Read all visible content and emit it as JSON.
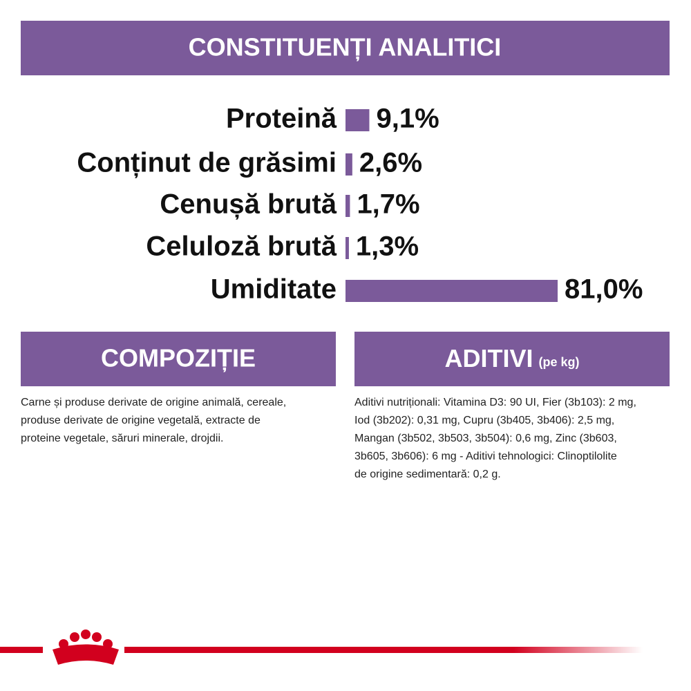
{
  "header": {
    "title": "CONSTITUENȚI ANALITICI"
  },
  "chart_data": {
    "type": "bar",
    "orientation": "horizontal",
    "color": "#7b5a9a",
    "categories": [
      "Proteină",
      "Conținut de grăsimi",
      "Cenușă brută",
      "Celuloză brută",
      "Umiditate"
    ],
    "values": [
      9.1,
      2.6,
      1.7,
      1.3,
      81.0
    ],
    "value_labels": [
      "9,1%",
      "2,6%",
      "1,7%",
      "1,3%",
      "81,0%"
    ]
  },
  "composition": {
    "title": "COMPOZIȚIE",
    "lines": [
      "Carne și produse derivate de origine animală, cereale,",
      "produse derivate de origine vegetală, extracte de",
      "proteine vegetale, săruri minerale, drojdii."
    ]
  },
  "additives": {
    "title": "ADITIVI",
    "subtitle": "(pe kg)",
    "lines": [
      "Aditivi nutriționali: Vitamina D3: 90 UI, Fier (3b103): 2 mg,",
      "Iod (3b202): 0,31 mg, Cupru (3b405, 3b406): 2,5 mg,",
      "Mangan (3b502, 3b503, 3b504): 0,6 mg, Zinc (3b603,",
      "3b605, 3b606): 6 mg - Aditivi tehnologici: Clinoptilolite",
      "de origine sedimentară: 0,2 g."
    ]
  }
}
